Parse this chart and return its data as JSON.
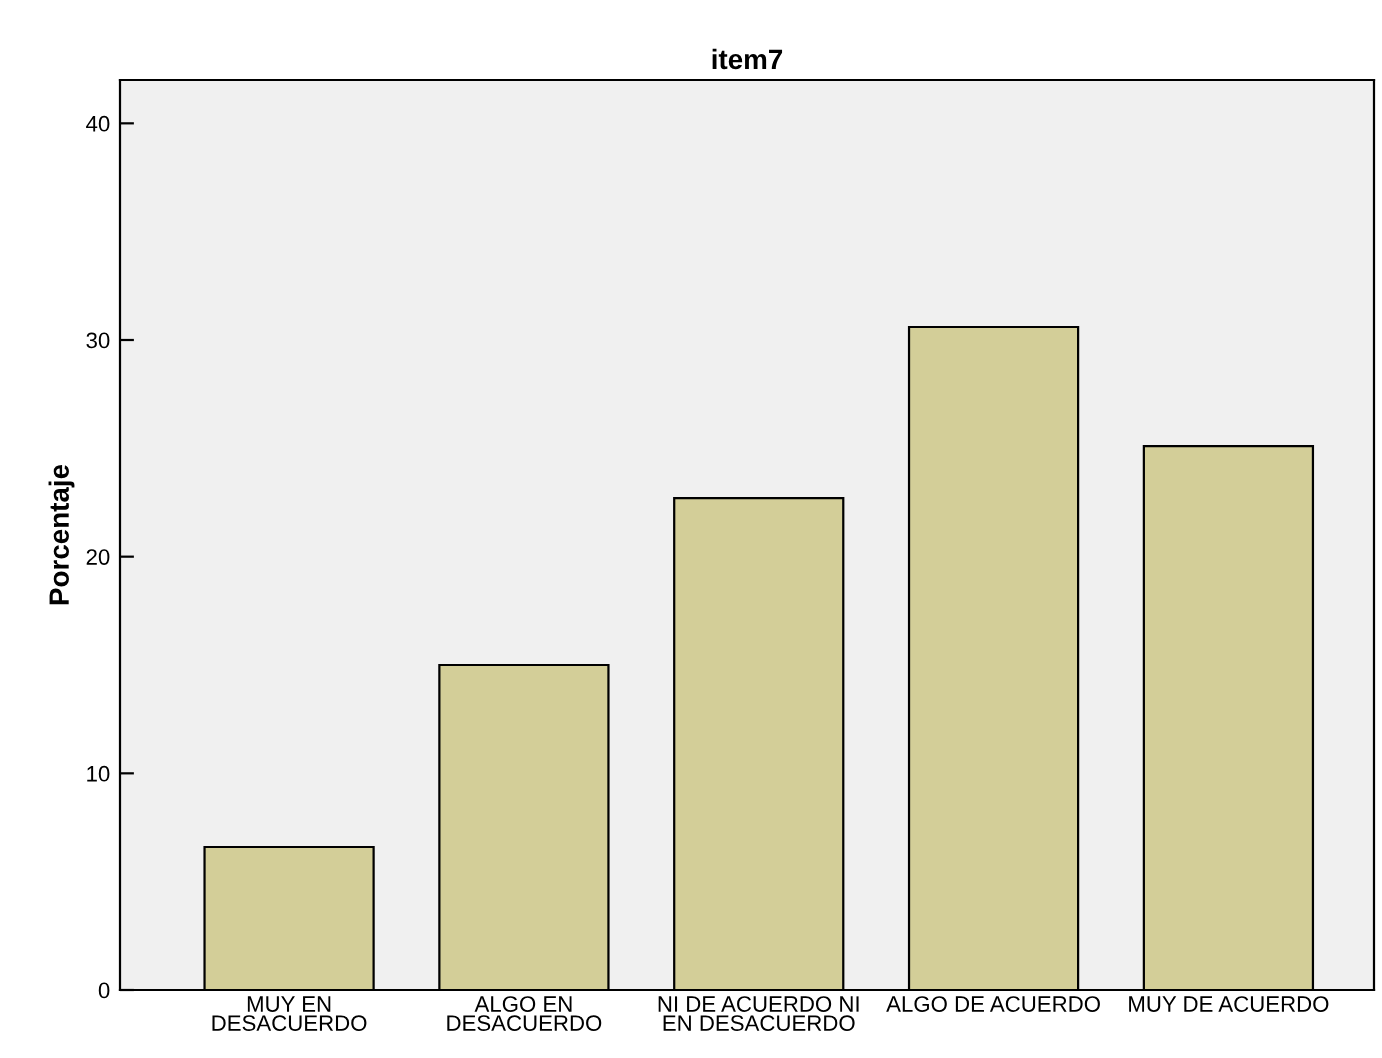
{
  "chart_data": {
    "type": "bar",
    "title": "item7",
    "ylabel": "Porcentaje",
    "categories": [
      "MUY EN\nDESACUERDO",
      "ALGO EN\nDESACUERDO",
      "NI DE ACUERDO NI\nEN DESACUERDO",
      "ALGO DE ACUERDO",
      "MUY DE ACUERDO"
    ],
    "values": [
      6.6,
      15.0,
      22.7,
      30.6,
      25.1
    ],
    "color": "#d3ce98",
    "ylim": [
      0,
      42
    ],
    "yticks": [
      0,
      10,
      20,
      30,
      40
    ],
    "grid": false
  }
}
